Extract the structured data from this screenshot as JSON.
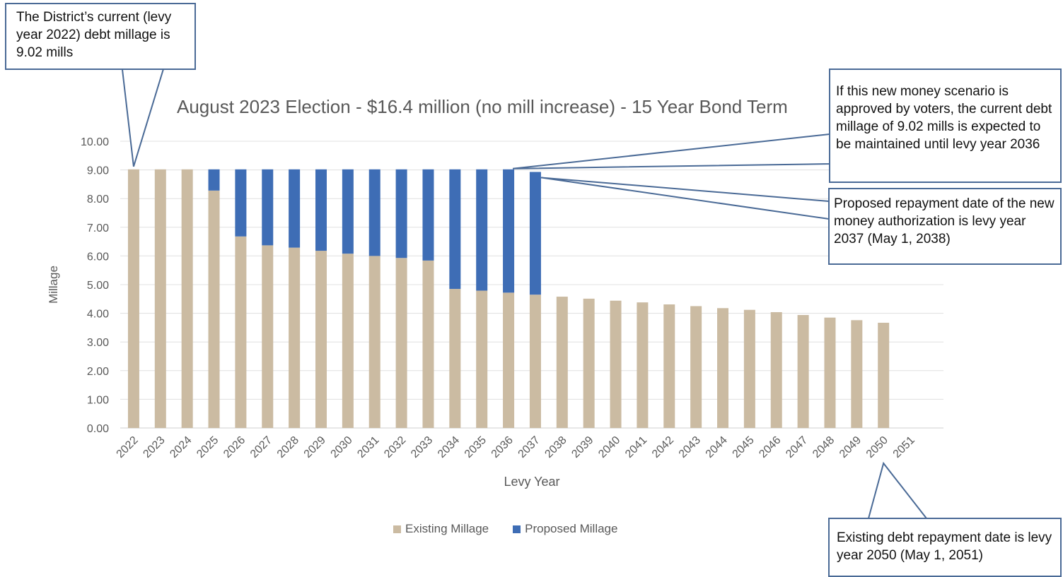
{
  "chart_data": {
    "type": "bar",
    "stacked": true,
    "title": "August 2023 Election - $16.4 million (no mill increase) - 15 Year Bond Term",
    "xlabel": "Levy Year",
    "ylabel": "Millage",
    "ylim": [
      0,
      10
    ],
    "yticks": [
      "0.00",
      "1.00",
      "2.00",
      "3.00",
      "4.00",
      "5.00",
      "6.00",
      "7.00",
      "8.00",
      "9.00",
      "10.00"
    ],
    "grid": true,
    "legend_position": "bottom",
    "categories": [
      "2022",
      "2023",
      "2024",
      "2025",
      "2026",
      "2027",
      "2028",
      "2029",
      "2030",
      "2031",
      "2032",
      "2033",
      "2034",
      "2035",
      "2036",
      "2037",
      "2038",
      "2039",
      "2040",
      "2041",
      "2042",
      "2043",
      "2044",
      "2045",
      "2046",
      "2047",
      "2048",
      "2049",
      "2050",
      "2051"
    ],
    "series": [
      {
        "name": "Existing Millage",
        "color": "#cbbba2",
        "values": [
          9.02,
          9.02,
          9.02,
          8.28,
          6.68,
          6.37,
          6.29,
          6.18,
          6.08,
          6.0,
          5.93,
          5.84,
          4.85,
          4.79,
          4.72,
          4.65,
          4.58,
          4.51,
          4.44,
          4.38,
          4.31,
          4.25,
          4.18,
          4.12,
          4.04,
          3.94,
          3.85,
          3.76,
          3.67,
          0
        ]
      },
      {
        "name": "Proposed Millage",
        "color": "#3e6db5",
        "values": [
          0,
          0,
          0,
          0.74,
          2.34,
          2.65,
          2.73,
          2.84,
          2.94,
          3.02,
          3.09,
          3.18,
          4.17,
          4.23,
          4.3,
          4.28,
          0,
          0,
          0,
          0,
          0,
          0,
          0,
          0,
          0,
          0,
          0,
          0,
          0,
          0
        ]
      }
    ]
  },
  "callouts": {
    "current": "The District’s current (levy year 2022) debt millage is 9.02 mills",
    "maintained": "If this new money scenario is approved by voters, the current debt millage of 9.02 mills is expected to be maintained until levy year 2036",
    "proposed": "Proposed repayment date of the new money authorization is levy year 2037 (May 1, 2038)",
    "existing": "Existing debt repayment date is levy year 2050 (May 1, 2051)"
  },
  "colors": {
    "existing": "#cbbba2",
    "proposed": "#3e6db5",
    "callout_border": "#4a6a96",
    "gridline": "#e0e0e0",
    "axis_text": "#595959"
  }
}
